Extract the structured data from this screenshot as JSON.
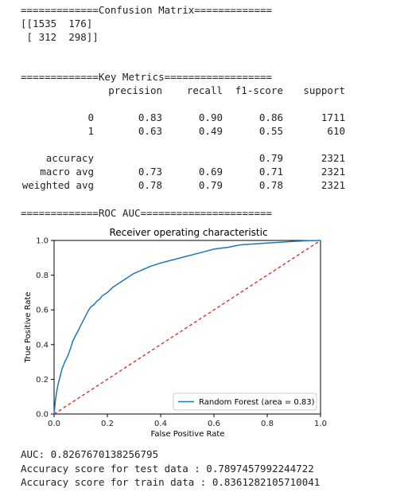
{
  "output": {
    "confusion_header": "=============Confusion Matrix=============",
    "confusion_rows": [
      "[[1535  176]",
      " [ 312  298]]"
    ],
    "metrics_header": "=============Key Metrics==================",
    "metrics_columns": [
      "precision",
      "recall",
      "f1-score",
      "support"
    ],
    "metrics_rows": [
      {
        "label": "0",
        "precision": "0.83",
        "recall": "0.90",
        "f1": "0.86",
        "support": "1711"
      },
      {
        "label": "1",
        "precision": "0.63",
        "recall": "0.49",
        "f1": "0.55",
        "support": "610"
      }
    ],
    "summary_rows": [
      {
        "label": "accuracy",
        "precision": "",
        "recall": "",
        "f1": "0.79",
        "support": "2321"
      },
      {
        "label": "macro avg",
        "precision": "0.73",
        "recall": "0.69",
        "f1": "0.71",
        "support": "2321"
      },
      {
        "label": "weighted avg",
        "precision": "0.78",
        "recall": "0.79",
        "f1": "0.78",
        "support": "2321"
      }
    ],
    "roc_header": "=============ROC AUC======================",
    "auc_line": "AUC: 0.8267670138256795",
    "test_line": "Accuracy score for test data : 0.7897457992244722",
    "train_line": "Accuracy score for train data : 0.8361282105710041"
  },
  "colors": {
    "roc_curve": "#1f77b4",
    "diagonal": "#d62728"
  },
  "chart_data": {
    "type": "line",
    "title": "Receiver operating characteristic",
    "xlabel": "False Positive Rate",
    "ylabel": "True Positive Rate",
    "xlim": [
      0.0,
      1.0
    ],
    "ylim": [
      0.0,
      1.0
    ],
    "xticks": [
      "0.0",
      "0.2",
      "0.4",
      "0.6",
      "0.8",
      "1.0"
    ],
    "yticks": [
      "0.0",
      "0.2",
      "0.4",
      "0.6",
      "0.8",
      "1.0"
    ],
    "grid": false,
    "legend_position": "lower-right",
    "series": [
      {
        "name": "Random Forest (area = 0.83)",
        "x": [
          0,
          0.005,
          0.01,
          0.015,
          0.02,
          0.03,
          0.04,
          0.05,
          0.06,
          0.07,
          0.08,
          0.09,
          0.1,
          0.11,
          0.12,
          0.13,
          0.14,
          0.15,
          0.16,
          0.17,
          0.18,
          0.2,
          0.22,
          0.25,
          0.28,
          0.3,
          0.33,
          0.36,
          0.4,
          0.45,
          0.5,
          0.55,
          0.6,
          0.65,
          0.7,
          0.75,
          0.8,
          0.85,
          0.9,
          0.95,
          1.0
        ],
        "y": [
          0,
          0.08,
          0.13,
          0.17,
          0.2,
          0.26,
          0.3,
          0.33,
          0.37,
          0.42,
          0.45,
          0.48,
          0.51,
          0.54,
          0.57,
          0.6,
          0.62,
          0.63,
          0.65,
          0.66,
          0.68,
          0.7,
          0.73,
          0.76,
          0.79,
          0.81,
          0.83,
          0.85,
          0.87,
          0.89,
          0.91,
          0.93,
          0.95,
          0.96,
          0.975,
          0.98,
          0.985,
          0.99,
          0.995,
          0.998,
          1.0
        ]
      },
      {
        "name": "",
        "style": "dashed",
        "x": [
          0,
          1
        ],
        "y": [
          0,
          1
        ]
      }
    ]
  }
}
